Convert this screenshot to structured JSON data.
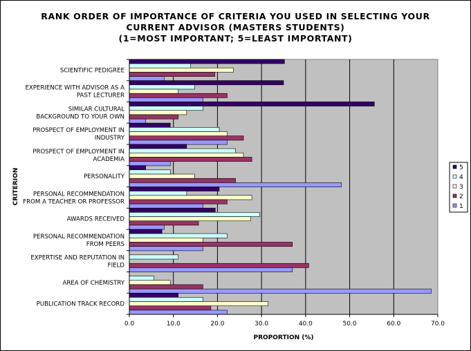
{
  "chart_data": {
    "type": "bar",
    "orientation": "horizontal",
    "title_lines": [
      "RANK ORDER OF IMPORTANCE OF CRITERIA YOU USED IN SELECTING YOUR",
      "CURRENT ADVISOR (MASTERS STUDENTS)",
      "(1=MOST IMPORTANT; 5=LEAST IMPORTANT)"
    ],
    "xlabel": "PROPORTION (%)",
    "ylabel": "CRITERION",
    "xlim": [
      0,
      70
    ],
    "xticks": [
      "0.0",
      "10.0",
      "20.0",
      "30.0",
      "40.0",
      "50.0",
      "60.0",
      "70.0"
    ],
    "grid": true,
    "legend_position": "right",
    "categories": [
      [
        "SCIENTIFIC PEDIGREE"
      ],
      [
        "EXPERIENCE WITH ADVISOR AS A",
        "PAST LECTURER"
      ],
      [
        "SIMILAR CULTURAL",
        "BACKGROUND TO YOUR OWN"
      ],
      [
        "PROSPECT OF EMPLOYMENT IN",
        "INDUSTRY"
      ],
      [
        "PROSPECT OF EMPLOYMENT IN",
        "ACADEMIA"
      ],
      [
        "PERSONALITY"
      ],
      [
        "PERSONAL RECOMMENDATION",
        "FROM A TEACHER OR PROFESSOR"
      ],
      [
        "AWARDS RECEIVED"
      ],
      [
        "PERSONAL RECOMMENDATION",
        "FROM PEERS"
      ],
      [
        "EXPERTISE AND REPUTATION IN",
        "FIELD"
      ],
      [
        "AREA OF CHEMISTRY"
      ],
      [
        "PUBLICATION TRACK RECORD"
      ]
    ],
    "series": [
      {
        "name": "5",
        "color": "#330066",
        "values": [
          35.2,
          35.0,
          55.6,
          9.3,
          13.0,
          3.7,
          20.4,
          19.5,
          7.4,
          0.0,
          0.0,
          11.1
        ]
      },
      {
        "name": "4",
        "color": "#ccffff",
        "values": [
          13.9,
          14.8,
          16.7,
          20.4,
          24.1,
          9.3,
          13.0,
          29.6,
          22.2,
          11.1,
          5.6,
          16.7
        ]
      },
      {
        "name": "3",
        "color": "#ffffcc",
        "values": [
          23.6,
          11.1,
          13.0,
          22.2,
          25.9,
          14.8,
          27.8,
          27.5,
          16.7,
          0.0,
          9.3,
          31.5
        ]
      },
      {
        "name": "2",
        "color": "#993366",
        "values": [
          19.4,
          22.2,
          11.1,
          25.9,
          27.8,
          24.1,
          22.2,
          15.7,
          37.0,
          40.7,
          16.7,
          18.5
        ]
      },
      {
        "name": "1",
        "color": "#9999ff",
        "values": [
          7.9,
          16.7,
          3.7,
          22.2,
          9.3,
          48.1,
          16.7,
          7.9,
          16.7,
          37.0,
          68.5,
          22.2
        ]
      }
    ]
  }
}
